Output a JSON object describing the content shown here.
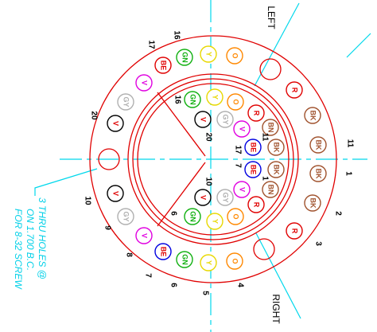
{
  "labels": {
    "left": "LEFT",
    "right": "RIGHT",
    "note": [
      "3 THRU HOLES @",
      "ON 1.700 B.C.",
      "FOR 8-32 SCREW"
    ]
  },
  "outer_pins": [
    "O",
    "Y",
    "GN",
    "BE",
    "V",
    "GY",
    "V",
    "V",
    "GY",
    "V",
    "BE",
    "GN",
    "Y",
    "O",
    "R",
    "BK",
    "BK",
    "BK",
    "BK",
    "R"
  ],
  "inner_pins": [
    "O",
    "Y",
    "GN",
    "V",
    "GY",
    "V",
    "R",
    "BN",
    "BE",
    "BK",
    "BE",
    "BK",
    "BN",
    "V",
    "R",
    "GY",
    "V",
    "GN",
    "Y",
    "O"
  ],
  "outer_numbers": [
    "16",
    "17",
    "20",
    "10",
    "9",
    "8",
    "7",
    "6",
    "5",
    "4",
    "3",
    "2",
    "1",
    "11"
  ],
  "inner_numbers": [
    "16",
    "20",
    "17",
    "7",
    "11",
    "1",
    "10",
    "6"
  ]
}
